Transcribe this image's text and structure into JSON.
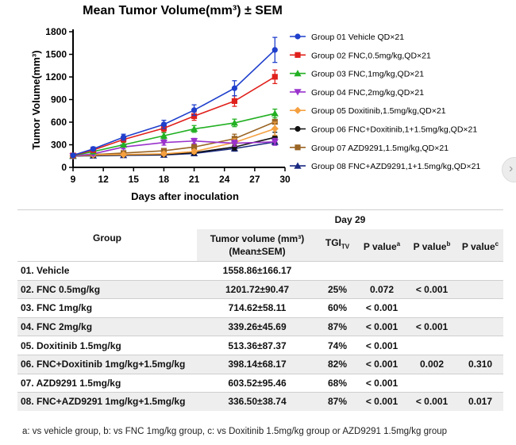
{
  "chart_data": {
    "type": "line",
    "title": "Mean Tumor Volume(mm³) ± SEM",
    "xlabel": "Days after inoculation",
    "ylabel": "Tumor Volume(mm³)",
    "xlim": [
      9,
      30
    ],
    "ylim": [
      0,
      1800
    ],
    "xticks": [
      "9",
      "12",
      "15",
      "18",
      "21",
      "24",
      "27",
      "30"
    ],
    "yticks": [
      "0",
      "300",
      "600",
      "900",
      "1200",
      "1500",
      "1800"
    ],
    "x": [
      9,
      11,
      14,
      18,
      21,
      25,
      29
    ],
    "series": [
      {
        "name": "Group 01 Vehicle QD×21",
        "color": "#1f3fcc",
        "marker": "circle",
        "values": [
          160,
          245,
          400,
          570,
          760,
          1050,
          1559
        ],
        "errors": [
          20,
          25,
          40,
          55,
          70,
          100,
          166
        ]
      },
      {
        "name": "Group 02 FNC,0.5mg/kg,QD×21",
        "color": "#e0201b",
        "marker": "square",
        "values": [
          158,
          230,
          370,
          520,
          680,
          880,
          1202
        ],
        "errors": [
          18,
          25,
          35,
          45,
          55,
          70,
          90
        ]
      },
      {
        "name": "Group 03 FNC,1mg/kg,QD×21",
        "color": "#22b022",
        "marker": "triangle",
        "values": [
          155,
          210,
          300,
          420,
          510,
          590,
          715
        ],
        "errors": [
          15,
          20,
          30,
          40,
          45,
          50,
          58
        ]
      },
      {
        "name": "Group 04 FNC,2mg/kg,QD×21",
        "color": "#9a33cc",
        "marker": "triangle-down",
        "values": [
          150,
          180,
          270,
          330,
          350,
          320,
          339
        ],
        "errors": [
          15,
          20,
          25,
          35,
          35,
          40,
          46
        ]
      },
      {
        "name": "Group 05 Doxitinib,1.5mg/kg,QD×21",
        "color": "#f5a040",
        "marker": "diamond",
        "values": [
          152,
          165,
          170,
          180,
          210,
          330,
          513
        ],
        "errors": [
          15,
          15,
          18,
          20,
          25,
          50,
          87
        ]
      },
      {
        "name": "Group 06 FNC+Doxitinib,1+1.5mg/kg,QD×21",
        "color": "#111111",
        "marker": "circle",
        "values": [
          150,
          160,
          165,
          170,
          195,
          270,
          398
        ],
        "errors": [
          15,
          15,
          18,
          20,
          25,
          40,
          68
        ]
      },
      {
        "name": "Group 07 AZD9291,1.5mg/kg,QD×21",
        "color": "#9a6525",
        "marker": "square",
        "values": [
          155,
          170,
          190,
          220,
          270,
          380,
          604
        ],
        "errors": [
          15,
          18,
          20,
          25,
          35,
          60,
          95
        ]
      },
      {
        "name": "Group 08 FNC+AZD9291,1+1.5mg/kg,QD×21",
        "color": "#1a2a80",
        "marker": "triangle",
        "values": [
          150,
          155,
          160,
          165,
          185,
          250,
          337
        ],
        "errors": [
          15,
          15,
          18,
          18,
          22,
          35,
          39
        ]
      }
    ]
  },
  "table": {
    "day_label": "Day 29",
    "headers": {
      "group": "Group",
      "tumor_line1": "Tumor volume (mm³)",
      "tumor_line2": "(Mean±SEM)",
      "tgi": "TGI",
      "tgi_sub": "TV",
      "pa": "P value",
      "pa_sup": "a",
      "pb": "P value",
      "pb_sup": "b",
      "pc": "P value",
      "pc_sup": "c"
    },
    "rows": [
      {
        "group": "01. Vehicle",
        "volume": "1558.86±166.17",
        "tgi": "",
        "pa": "",
        "pb": "",
        "pc": ""
      },
      {
        "group": "02. FNC 0.5mg/kg",
        "volume": "1201.72±90.47",
        "tgi": "25%",
        "pa": "0.072",
        "pb": "< 0.001",
        "pc": ""
      },
      {
        "group": "03. FNC 1mg/kg",
        "volume": "714.62±58.11",
        "tgi": "60%",
        "pa": "< 0.001",
        "pb": "",
        "pc": ""
      },
      {
        "group": "04. FNC 2mg/kg",
        "volume": "339.26±45.69",
        "tgi": "87%",
        "pa": "< 0.001",
        "pb": "< 0.001",
        "pc": ""
      },
      {
        "group": "05. Doxitinib 1.5mg/kg",
        "volume": "513.36±87.37",
        "tgi": "74%",
        "pa": "< 0.001",
        "pb": "",
        "pc": ""
      },
      {
        "group": "06. FNC+Doxitinib 1mg/kg+1.5mg/kg",
        "volume": "398.14±68.17",
        "tgi": "82%",
        "pa": "< 0.001",
        "pb": "0.002",
        "pc": "0.310"
      },
      {
        "group": "07. AZD9291 1.5mg/kg",
        "volume": "603.52±95.46",
        "tgi": "68%",
        "pa": "< 0.001",
        "pb": "",
        "pc": ""
      },
      {
        "group": "08. FNC+AZD9291 1mg/kg+1.5mg/kg",
        "volume": "336.50±38.74",
        "tgi": "87%",
        "pa": "< 0.001",
        "pb": "< 0.001",
        "pc": "0.017"
      }
    ]
  },
  "footnote": "a: vs vehicle group, b: vs  FNC 1mg/kg group, c: vs Doxitinib 1.5mg/kg group or AZD9291 1.5mg/kg group",
  "scroll_icon": "chevron-right-icon",
  "scroll_glyph": "›"
}
